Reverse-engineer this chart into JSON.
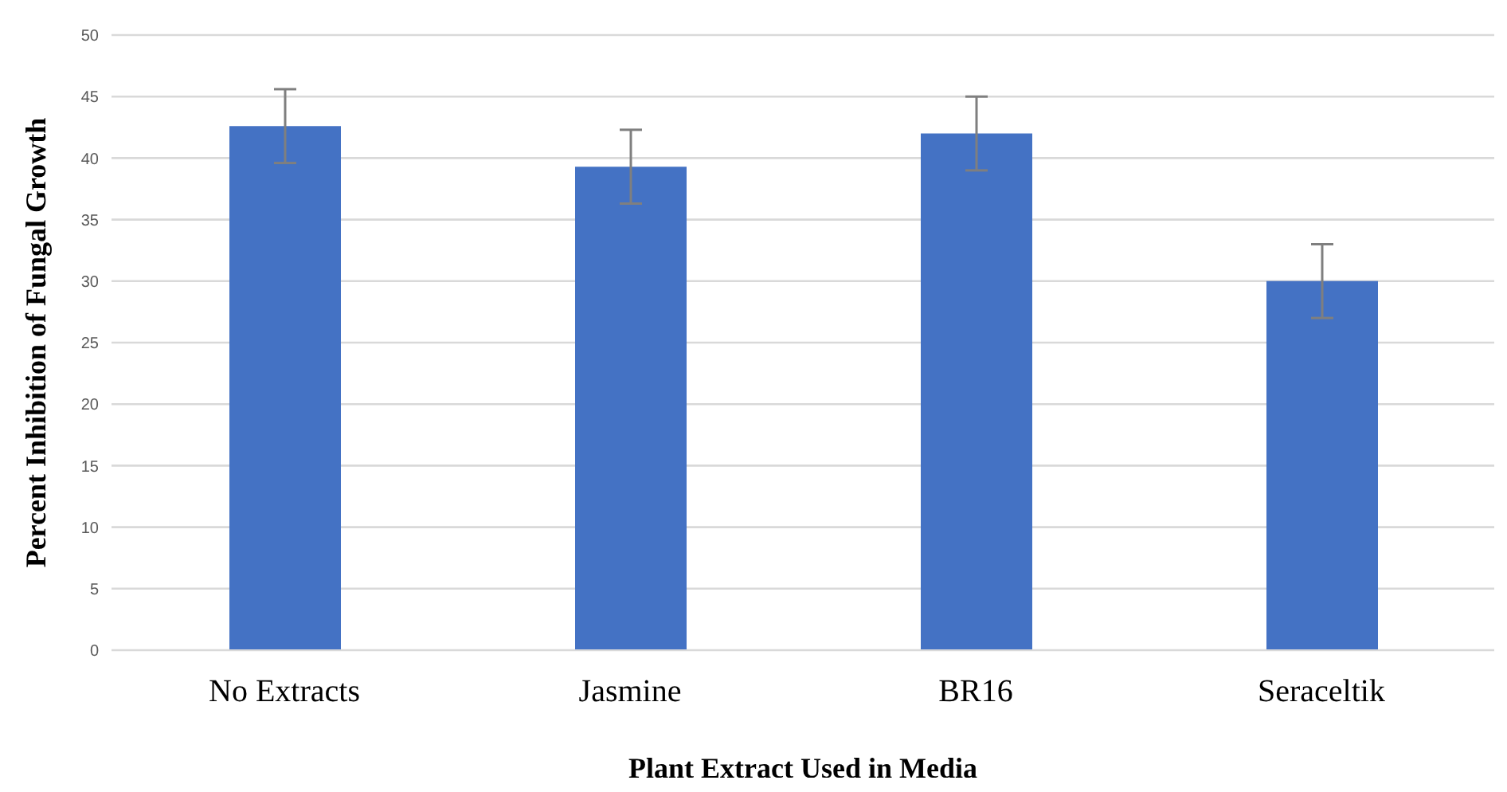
{
  "chart_data": {
    "type": "bar",
    "xlabel": "Plant Extract Used in Media",
    "ylabel": "Percent Inhibition of  Fungal Growth",
    "categories": [
      "No Extracts",
      "Jasmine",
      "BR16",
      "Seraceltik"
    ],
    "values": [
      42.6,
      39.3,
      42.0,
      30.0
    ],
    "errors": [
      3,
      3,
      3,
      3
    ],
    "color": "#4472c4",
    "ylim": [
      0,
      50
    ],
    "yticks": [
      0,
      5,
      10,
      15,
      20,
      25,
      30,
      35,
      40,
      45,
      50
    ],
    "grid": "y"
  }
}
